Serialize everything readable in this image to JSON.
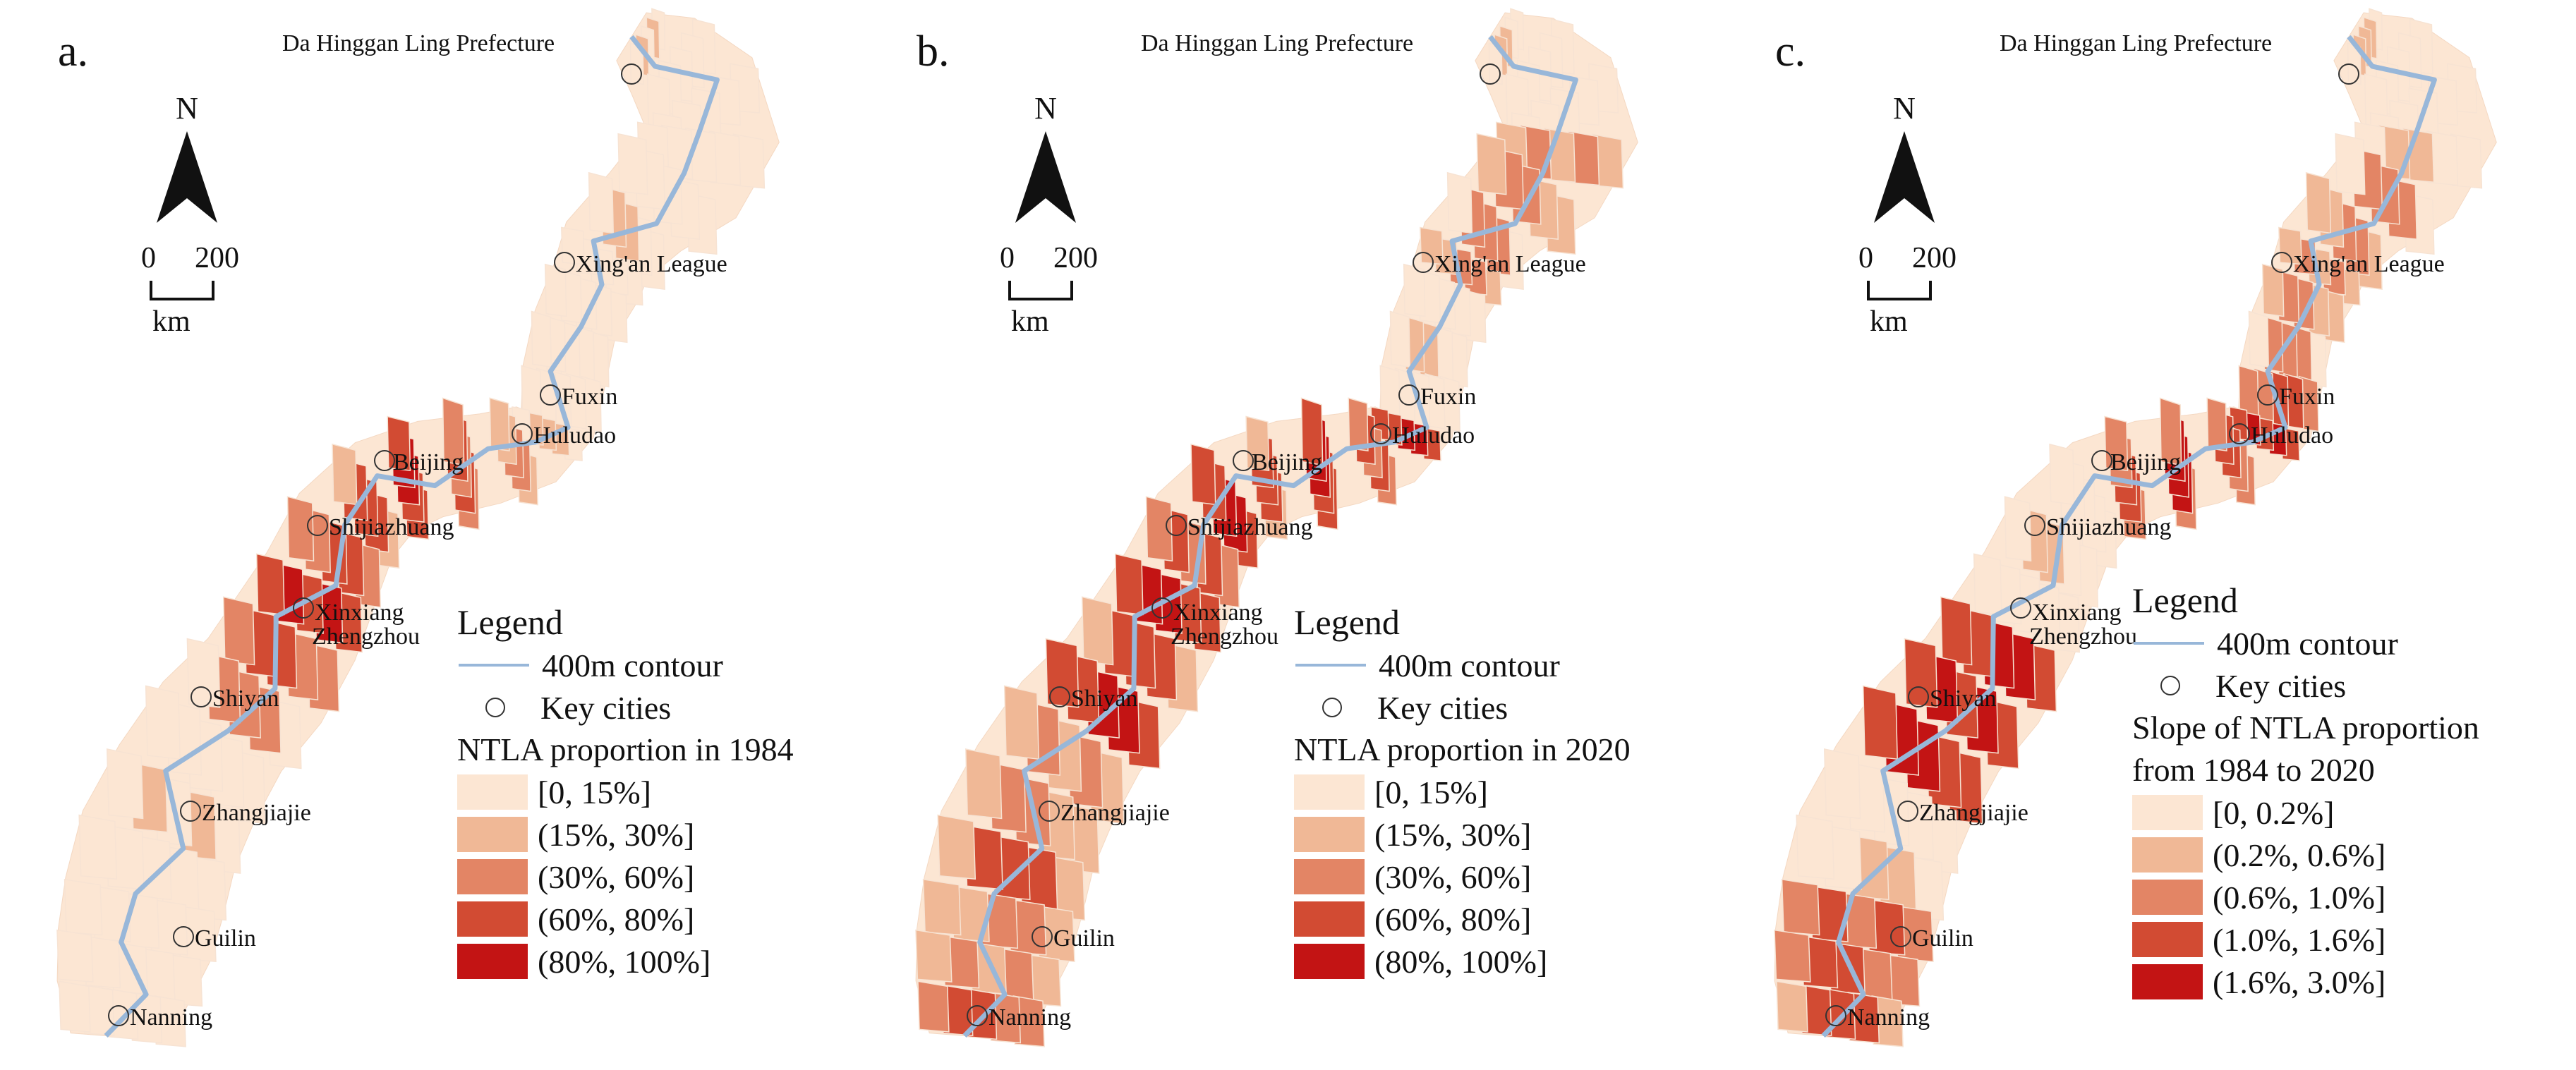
{
  "panels": [
    {
      "label": "a.",
      "north": "N",
      "scale": {
        "start": "0",
        "end": "200",
        "unit": "km"
      },
      "cities": [
        "Da Hinggan Ling Prefecture",
        "Xing'an League",
        "Fuxin",
        "Huludao",
        "Beijing",
        "Shijiazhuang",
        "Xinxiang",
        "Zhengzhou",
        "Shiyan",
        "Zhangjiajie",
        "Guilin",
        "Nanning"
      ],
      "legend": {
        "title": "Legend",
        "contour": "400m contour",
        "key_cities": "Key cities",
        "heading": [
          "NTLA proportion in 1984"
        ],
        "classes": [
          "[0, 15%]",
          "(15%, 30%]",
          "(30%, 60%]",
          "(60%, 80%]",
          "(80%, 100%]"
        ]
      }
    },
    {
      "label": "b.",
      "north": "N",
      "scale": {
        "start": "0",
        "end": "200",
        "unit": "km"
      },
      "cities": [
        "Da Hinggan Ling Prefecture",
        "Xing'an League",
        "Fuxin",
        "Huludao",
        "Beijing",
        "Shijiazhuang",
        "Xinxiang",
        "Zhengzhou",
        "Shiyan",
        "Zhangjiajie",
        "Guilin",
        "Nanning"
      ],
      "legend": {
        "title": "Legend",
        "contour": "400m contour",
        "key_cities": "Key cities",
        "heading": [
          "NTLA proportion in 2020"
        ],
        "classes": [
          "[0, 15%]",
          "(15%, 30%]",
          "(30%, 60%]",
          "(60%, 80%]",
          "(80%, 100%]"
        ]
      }
    },
    {
      "label": "c.",
      "north": "N",
      "scale": {
        "start": "0",
        "end": "200",
        "unit": "km"
      },
      "cities": [
        "Da Hinggan Ling Prefecture",
        "Xing'an League",
        "Fuxin",
        "Huludao",
        "Beijing",
        "Shijiazhuang",
        "Xinxiang",
        "Zhengzhou",
        "Shiyan",
        "Zhangjiajie",
        "Guilin",
        "Nanning"
      ],
      "legend": {
        "title": "Legend",
        "contour": "400m contour",
        "key_cities": "Key cities",
        "heading": [
          "Slope of NTLA proportion",
          "from 1984 to 2020"
        ],
        "classes": [
          "[0, 0.2%]",
          "(0.2%, 0.6%]",
          "(0.6%, 1.0%]",
          "(1.0%, 1.6%]",
          "(1.6%, 3.0%]"
        ]
      }
    }
  ],
  "colors": {
    "class_fill": [
      "#fce6d3",
      "#f0b896",
      "#e38565",
      "#d24b33",
      "#c31414"
    ],
    "contour": "#98b7d9",
    "city_marker": "#333333"
  },
  "emphasis": {
    "panel_a": "high classes concentrated around Beijing, Shijiazhuang and Xinxiang/Zhengzhou; most of the belt in the lowest class",
    "panel_b": "dark red spread along the central section from Fuxin to Shiyan, with scattered high classes near Guilin and Nanning",
    "panel_c": "highest slopes along the Fuxin–Beijing belt, around Shiyan and in the south near Nanning"
  }
}
